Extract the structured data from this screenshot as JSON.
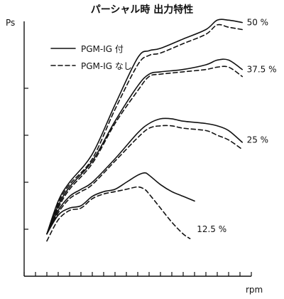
{
  "chart_data": {
    "type": "line",
    "title": "パーシャル時 出力特性",
    "xlabel": "rpm",
    "ylabel": "Ps",
    "xlim": [
      0,
      10
    ],
    "ylim": [
      0,
      10
    ],
    "x_ticks": [
      0,
      0.5,
      1,
      1.5,
      2,
      2.5,
      3,
      3.5,
      4,
      4.5,
      5,
      5.5,
      6,
      6.5,
      7,
      7.5,
      8,
      8.5,
      9,
      9.5,
      10
    ],
    "y_ticks": [
      2,
      4,
      6,
      8
    ],
    "grid": false,
    "legend_position": "top-left",
    "legend": [
      {
        "label": "PGM-IG 付",
        "style": "solid",
        "color": "#111111"
      },
      {
        "label": "PGM-IG なし",
        "style": "dashed",
        "color": "#111111"
      }
    ],
    "series": [
      {
        "name": "PGM-IG 付",
        "group": "50 %",
        "style": "solid",
        "x": [
          1.0,
          1.5,
          2.0,
          3.0,
          4.0,
          5.0,
          5.5,
          6.0,
          7.0,
          8.0,
          8.5,
          9.0,
          9.6
        ],
        "y": [
          1.8,
          3.2,
          4.0,
          5.2,
          7.3,
          9.3,
          9.6,
          9.7,
          10.1,
          10.5,
          10.9,
          10.9,
          10.8
        ]
      },
      {
        "name": "PGM-IG なし",
        "group": "50 %",
        "style": "dashed",
        "x": [
          1.0,
          1.5,
          2.0,
          3.0,
          4.0,
          5.0,
          5.5,
          6.0,
          7.0,
          8.0,
          8.5,
          9.0,
          9.6
        ],
        "y": [
          1.8,
          3.1,
          3.9,
          5.0,
          7.1,
          9.0,
          9.4,
          9.5,
          9.9,
          10.3,
          10.7,
          10.6,
          10.5
        ]
      },
      {
        "name": "PGM-IG 付",
        "group": "37.5 %",
        "style": "solid",
        "x": [
          1.0,
          1.5,
          2.0,
          3.0,
          4.0,
          5.0,
          5.5,
          6.0,
          7.0,
          8.0,
          8.5,
          9.0,
          9.6
        ],
        "y": [
          1.8,
          3.0,
          3.8,
          4.9,
          6.6,
          8.1,
          8.6,
          8.7,
          8.8,
          9.0,
          9.2,
          9.2,
          8.8
        ]
      },
      {
        "name": "PGM-IG なし",
        "group": "37.5 %",
        "style": "dashed",
        "x": [
          1.0,
          1.5,
          2.0,
          3.0,
          4.0,
          5.0,
          5.5,
          6.0,
          7.0,
          8.0,
          8.5,
          9.0,
          9.6
        ],
        "y": [
          1.8,
          2.9,
          3.7,
          4.8,
          6.5,
          7.9,
          8.5,
          8.6,
          8.7,
          8.8,
          8.9,
          8.9,
          8.5
        ]
      },
      {
        "name": "PGM-IG 付",
        "group": "25 %",
        "style": "solid",
        "x": [
          1.0,
          1.5,
          2.0,
          2.5,
          3.0,
          4.0,
          5.0,
          5.5,
          6.0,
          6.5,
          7.0,
          8.0,
          8.5,
          9.0,
          9.6
        ],
        "y": [
          1.8,
          2.8,
          3.4,
          3.7,
          4.0,
          5.0,
          6.1,
          6.5,
          6.7,
          6.7,
          6.6,
          6.5,
          6.4,
          6.2,
          5.7
        ]
      },
      {
        "name": "PGM-IG なし",
        "group": "25 %",
        "style": "dashed",
        "x": [
          1.0,
          1.5,
          2.0,
          2.5,
          3.0,
          4.0,
          5.0,
          5.5,
          6.0,
          6.5,
          7.0,
          8.0,
          8.5,
          9.0,
          9.6
        ],
        "y": [
          1.8,
          2.7,
          3.3,
          3.6,
          3.9,
          4.9,
          5.9,
          6.3,
          6.4,
          6.4,
          6.3,
          6.2,
          6.0,
          5.8,
          5.4
        ]
      },
      {
        "name": "PGM-IG 付",
        "group": "12.5 %",
        "style": "solid",
        "x": [
          1.0,
          1.5,
          2.0,
          2.5,
          3.0,
          3.5,
          4.0,
          4.5,
          5.0,
          5.3,
          5.5,
          6.0,
          6.5,
          7.0,
          7.5
        ],
        "y": [
          1.8,
          2.6,
          2.9,
          3.0,
          3.4,
          3.6,
          3.7,
          4.0,
          4.3,
          4.4,
          4.3,
          3.9,
          3.6,
          3.4,
          3.2
        ]
      },
      {
        "name": "PGM-IG なし",
        "group": "12.5 %",
        "style": "dashed",
        "x": [
          1.0,
          1.5,
          2.0,
          2.5,
          3.0,
          3.5,
          4.0,
          4.5,
          5.0,
          5.3,
          5.5,
          6.0,
          6.5,
          7.0,
          7.3
        ],
        "y": [
          1.5,
          2.4,
          2.8,
          2.9,
          3.3,
          3.5,
          3.6,
          3.7,
          3.8,
          3.7,
          3.5,
          2.9,
          2.3,
          1.8,
          1.6
        ]
      }
    ],
    "annotations": [
      {
        "text": "50 %",
        "x": 9.8,
        "y": 10.8
      },
      {
        "text": "37.5 %",
        "x": 9.8,
        "y": 8.8
      },
      {
        "text": "25 %",
        "x": 9.8,
        "y": 5.8
      },
      {
        "text": "12.5 %",
        "x": 7.6,
        "y": 2.0
      }
    ]
  }
}
